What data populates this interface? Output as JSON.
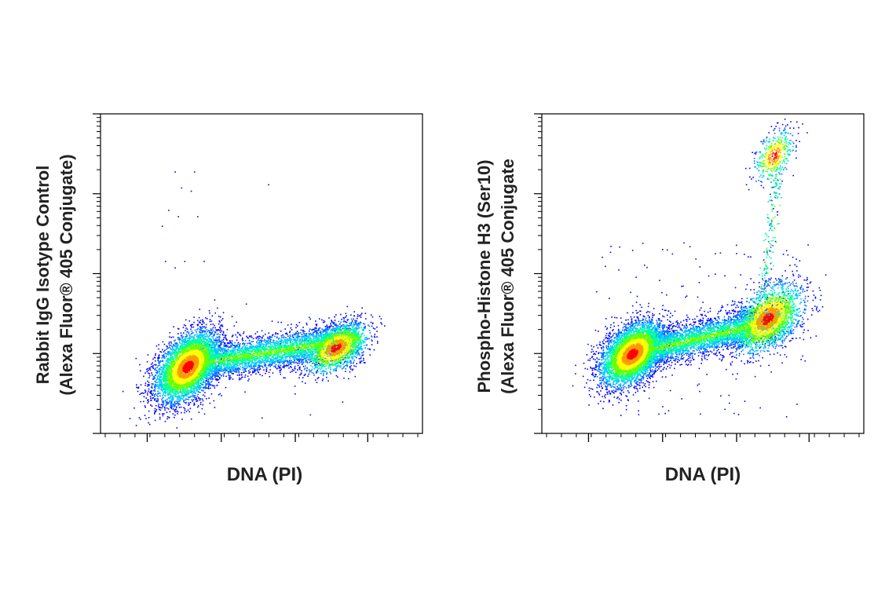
{
  "chart_data": [
    {
      "type": "scatter",
      "title": "",
      "xlabel": "DNA (PI)",
      "ylabel_line1": "Rabbit IgG Isotype Control",
      "ylabel_line2": "(Alexa Fluor® 405 Conjugate)",
      "x_ticks_labeled": false,
      "y_ticks_labeled": false,
      "color_scale": [
        "#0000ff",
        "#00c8ff",
        "#00ff66",
        "#ffff00",
        "#ff0000"
      ],
      "populations": [
        {
          "name_note": "G1 dense cluster",
          "x": 0.27,
          "y": 0.21,
          "sx": 0.05,
          "sy": 0.055,
          "n": 5200
        },
        {
          "name_note": "S phase band",
          "x_from": 0.3,
          "x_to": 0.8,
          "y_from": 0.22,
          "y_to": 0.3,
          "n": 4200
        },
        {
          "name_note": "G2 cluster",
          "x": 0.73,
          "y": 0.27,
          "sx": 0.05,
          "sy": 0.04,
          "n": 1600
        },
        {
          "name_note": "sparse outliers",
          "n": 18
        }
      ]
    },
    {
      "type": "scatter",
      "title": "",
      "xlabel": "DNA (PI)",
      "ylabel_line1": "Phospho-Histone H3 (Ser10)",
      "ylabel_line2": "(Alexa Fluor® 405 Conjugate",
      "x_ticks_labeled": false,
      "y_ticks_labeled": false,
      "color_scale": [
        "#0000ff",
        "#00c8ff",
        "#00ff66",
        "#ffff00",
        "#ff0000"
      ],
      "populations": [
        {
          "name_note": "G1 dense cluster",
          "x": 0.28,
          "y": 0.25,
          "sx": 0.05,
          "sy": 0.05,
          "n": 5000
        },
        {
          "name_note": "S phase band",
          "x_from": 0.32,
          "x_to": 0.75,
          "y_from": 0.26,
          "y_to": 0.36,
          "n": 3800
        },
        {
          "name_note": "G2 cluster",
          "x": 0.7,
          "y": 0.36,
          "sx": 0.055,
          "sy": 0.055,
          "n": 2200
        },
        {
          "name_note": "mitotic pH3+ population",
          "x": 0.72,
          "y": 0.87,
          "sx": 0.03,
          "sy": 0.04,
          "n": 450
        },
        {
          "name_note": "mitotic trail",
          "x_from": 0.69,
          "x_to": 0.73,
          "y_from": 0.45,
          "y_to": 0.85,
          "n": 180
        },
        {
          "name_note": "sparse outliers",
          "n": 140
        }
      ]
    }
  ]
}
